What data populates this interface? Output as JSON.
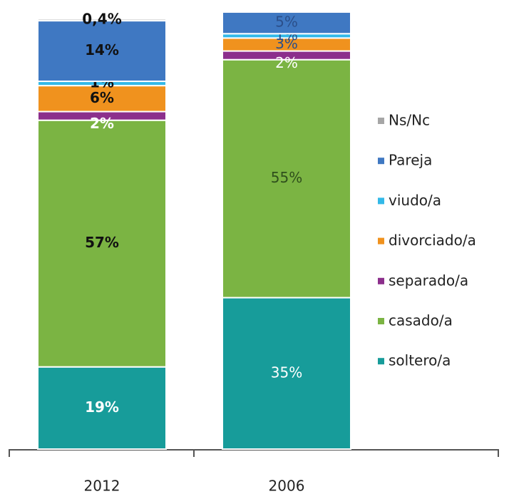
{
  "chart_data": {
    "type": "stacked_bar",
    "categories": [
      "2012",
      "2006"
    ],
    "ylim": [
      0,
      100
    ],
    "series": [
      {
        "name": "soltero/a",
        "color": "#179c9a",
        "values": [
          19,
          35
        ],
        "value_labels": [
          "19%",
          "35%"
        ]
      },
      {
        "name": "casado/a",
        "color": "#7bb443",
        "values": [
          57,
          55
        ],
        "value_labels": [
          "57%",
          "55%"
        ]
      },
      {
        "name": "separado/a",
        "color": "#8c2f8c",
        "values": [
          2,
          2
        ],
        "value_labels": [
          "2%",
          "2%"
        ]
      },
      {
        "name": "divorciado/a",
        "color": "#f0921e",
        "values": [
          6,
          3
        ],
        "value_labels": [
          "6%",
          "3%"
        ]
      },
      {
        "name": "viudo/a",
        "color": "#33b9e8",
        "values": [
          1,
          1
        ],
        "value_labels": [
          "1%",
          "1%"
        ]
      },
      {
        "name": "Pareja",
        "color": "#3f78c2",
        "values": [
          14,
          5
        ],
        "value_labels": [
          "14%",
          "5%"
        ]
      },
      {
        "name": "Ns/Nc",
        "color": "#a6a6a6",
        "values": [
          0.4,
          null
        ],
        "value_labels": [
          "0,4%",
          null
        ]
      }
    ]
  }
}
